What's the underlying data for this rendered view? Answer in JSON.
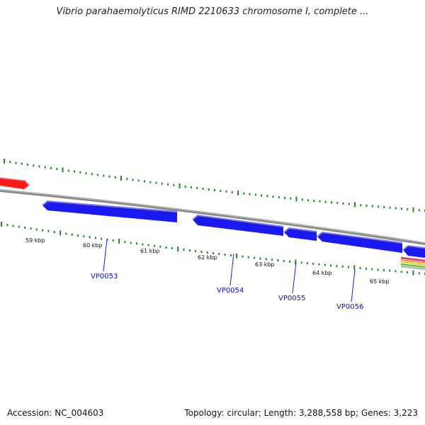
{
  "title": "Vibrio parahaemolyticus RIMD 2210633 chromosome I, complete ...",
  "footer": {
    "accession": "Accession: NC_004603",
    "summary": "Topology: circular; Length: 3,288,558 bp; Genes: 3,223"
  },
  "colors": {
    "backbone": "#8a8a8a",
    "gene_forward": "#ff1a1a",
    "gene_reverse": "#1a1aee",
    "ticks": "#1f8a1f",
    "label_line": "#1a1aee"
  },
  "scale": {
    "labels": [
      "59 kbp",
      "60 kbp",
      "61 kbp",
      "62 kbp",
      "63 kbp",
      "64 kbp",
      "65 kbp"
    ]
  },
  "genes": [
    {
      "label": "VP0053"
    },
    {
      "label": "VP0054"
    },
    {
      "label": "VP0055"
    },
    {
      "label": "VP0056"
    }
  ]
}
